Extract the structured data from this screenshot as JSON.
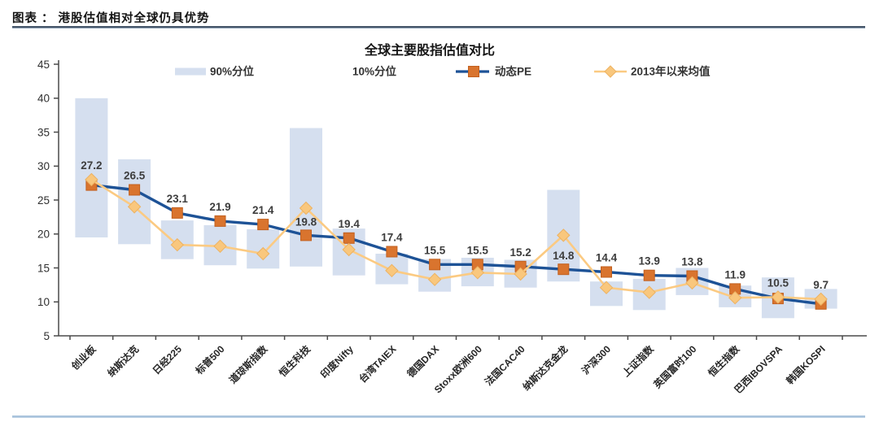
{
  "page": {
    "header": {
      "text": "图表 ： 港股估值相对全球仍具优势"
    }
  },
  "colors": {
    "header_divider_dark": "#46566a",
    "header_divider_light": "#bcd0e4",
    "footer_divider": "#a9c3dc",
    "axis": "#4a4a4a",
    "tick_label": "#2f2f2f",
    "data_label": "#3d3d3d",
    "range_bar": "#d5dfef",
    "pe_line": "#1d5296",
    "pe_marker": "#d9742e",
    "pe_marker_stroke": "#c2601f",
    "mean_line": "#fbca82",
    "mean_marker": "#f9c77d",
    "mean_marker_stroke": "#edb261"
  },
  "chart_data": {
    "type": "combo",
    "title": "全球主要股指估值对比",
    "xlabel": "",
    "ylabel": "",
    "ylim": [
      5,
      45
    ],
    "yticks": [
      5,
      10,
      15,
      20,
      25,
      30,
      35,
      40,
      45
    ],
    "grid": false,
    "legend_position": "top",
    "categories": [
      "创业板",
      "纳斯达克",
      "日经225",
      "标普500",
      "道琼斯指数",
      "恒生科技",
      "印度Nifty",
      "台湾TAIEX",
      "德国DAX",
      "Stoxx欧洲600",
      "法国CAC40",
      "纳斯达克金龙",
      "沪深300",
      "上证指数",
      "英国富时100",
      "恒生指数",
      "巴西IBOVSPA",
      "韩国KOSPI"
    ],
    "series": [
      {
        "name": "90%分位",
        "type": "range-bar-top",
        "color": "#d5dfef",
        "values": [
          40.0,
          31.0,
          22.0,
          21.3,
          20.7,
          35.6,
          20.8,
          17.1,
          16.3,
          16.5,
          16.2,
          26.5,
          13.0,
          13.4,
          15.0,
          12.4,
          13.6,
          11.9
        ]
      },
      {
        "name": "10%分位",
        "type": "range-bar-bottom",
        "color": "#ffffff",
        "values": [
          19.5,
          18.5,
          16.3,
          15.4,
          14.9,
          15.2,
          13.9,
          12.6,
          11.5,
          12.3,
          12.1,
          13.0,
          9.4,
          8.8,
          11.0,
          9.2,
          7.6,
          9.0
        ]
      },
      {
        "name": "动态PE",
        "type": "line",
        "marker": "square",
        "line_color": "#1d5296",
        "marker_color": "#d9742e",
        "marker_stroke": "#c2601f",
        "data_labels": true,
        "values": [
          27.2,
          26.5,
          23.1,
          21.9,
          21.4,
          19.8,
          19.4,
          17.4,
          15.5,
          15.5,
          15.2,
          14.8,
          14.4,
          13.9,
          13.8,
          11.9,
          10.5,
          9.7
        ]
      },
      {
        "name": "2013年以来均值",
        "type": "line",
        "marker": "diamond",
        "line_color": "#fbca82",
        "marker_color": "#f9c77d",
        "marker_stroke": "#edb261",
        "data_labels": false,
        "values": [
          28.0,
          24.0,
          18.4,
          18.2,
          17.1,
          23.8,
          17.7,
          14.6,
          13.3,
          14.3,
          14.1,
          19.8,
          12.1,
          11.4,
          12.8,
          10.6,
          10.7,
          10.4
        ]
      }
    ]
  }
}
